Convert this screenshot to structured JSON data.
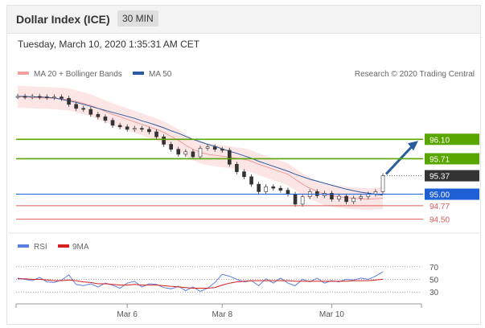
{
  "header": {
    "title": "Dollar Index (ICE)",
    "timeframe": "30 MIN"
  },
  "timestamp": "Tuesday, March 10, 2020 1:35:31 AM CET",
  "legend": {
    "bollinger": "MA 20 + Bollinger Bands",
    "ma50": "MA 50",
    "credit": "Research © 2020 Trading Central"
  },
  "colors": {
    "resistance": "#5aa600",
    "support_blue": "#1f5fd6",
    "support_red": "#e25a5a",
    "current": "#333333",
    "ma50": "#2a5d9f",
    "bollinger": "#f4a0a0",
    "rsi": "#5b7fe0",
    "rsi_ma": "#d62020",
    "arrow": "#2a5d9f"
  },
  "chart_data": [
    {
      "type": "line",
      "series": [
        {
          "name": "MA 20 + Bollinger Bands",
          "y": [
            96.95,
            96.95,
            96.94,
            96.93,
            96.93,
            96.92,
            96.91,
            96.9,
            96.86,
            96.82,
            96.78,
            96.72,
            96.66,
            96.6,
            96.55,
            96.5,
            96.45,
            96.4,
            96.35,
            96.3,
            96.24,
            96.16,
            96.08,
            95.98,
            95.9,
            95.84,
            95.8,
            95.78,
            95.76,
            95.74,
            95.72,
            95.7,
            95.66,
            95.6,
            95.55,
            95.5,
            95.45,
            95.4,
            95.3,
            95.2,
            95.12,
            95.06,
            95.0,
            94.97,
            94.95,
            94.93,
            94.92,
            94.91,
            94.9,
            94.91,
            94.92
          ]
        },
        {
          "name": "MA 50",
          "y": [
            96.96,
            96.96,
            96.95,
            96.95,
            96.94,
            96.93,
            96.9,
            96.87,
            96.84,
            96.8,
            96.76,
            96.72,
            96.68,
            96.64,
            96.6,
            96.56,
            96.52,
            96.47,
            96.43,
            96.38,
            96.33,
            96.27,
            96.22,
            96.16,
            96.1,
            96.05,
            96.0,
            95.96,
            95.91,
            95.86,
            95.82,
            95.77,
            95.72,
            95.66,
            95.61,
            95.56,
            95.51,
            95.46,
            95.4,
            95.35,
            95.3,
            95.26,
            95.22,
            95.18,
            95.14,
            95.1,
            95.07,
            95.04,
            95.02,
            95.0,
            94.98
          ]
        },
        {
          "name": "Price",
          "y": [
            96.96,
            96.95,
            96.96,
            96.95,
            96.94,
            96.95,
            96.92,
            96.8,
            96.72,
            96.7,
            96.6,
            96.55,
            96.48,
            96.38,
            96.35,
            96.3,
            96.32,
            96.3,
            96.25,
            96.15,
            96.0,
            95.9,
            95.8,
            95.85,
            95.75,
            95.92,
            95.95,
            95.9,
            95.88,
            95.6,
            95.45,
            95.35,
            95.2,
            95.05,
            95.15,
            95.12,
            95.08,
            95.0,
            94.8,
            94.95,
            95.05,
            94.97,
            95.02,
            94.9,
            94.96,
            94.85,
            94.92,
            94.95,
            95.0,
            95.05,
            95.37
          ]
        }
      ],
      "levels": [
        {
          "value": 96.1,
          "label": "96.10",
          "kind": "resistance"
        },
        {
          "value": 95.71,
          "label": "95.71",
          "kind": "resistance"
        },
        {
          "value": 95.37,
          "label": "95.37",
          "kind": "current"
        },
        {
          "value": 95.0,
          "label": "95.00",
          "kind": "pivot"
        },
        {
          "value": 94.77,
          "label": "94.77",
          "kind": "support"
        },
        {
          "value": 94.5,
          "label": "94.50",
          "kind": "support"
        }
      ],
      "x_ticks": [
        {
          "label": "Mar 6",
          "i": 15
        },
        {
          "label": "Mar 8",
          "i": 28
        },
        {
          "label": "Mar 10",
          "i": 43
        }
      ],
      "ylim": [
        94.3,
        97.2
      ],
      "bands_width": 0.22
    },
    {
      "type": "line",
      "series": [
        {
          "name": "RSI",
          "values": [
            52,
            50,
            48,
            53,
            46,
            45,
            49,
            57,
            42,
            40,
            43,
            38,
            44,
            41,
            36,
            44,
            47,
            38,
            43,
            42,
            37,
            35,
            39,
            32,
            38,
            31,
            36,
            45,
            58,
            55,
            50,
            46,
            48,
            40,
            51,
            44,
            52,
            44,
            40,
            50,
            46,
            52,
            44,
            48,
            46,
            50,
            49,
            52,
            50,
            55,
            62
          ]
        },
        {
          "name": "9MA",
          "values": [
            51,
            51,
            50,
            50,
            49,
            48,
            48,
            49,
            48,
            46,
            45,
            43,
            43,
            42,
            41,
            41,
            42,
            41,
            41,
            41,
            40,
            39,
            38,
            37,
            36,
            36,
            36,
            37,
            41,
            44,
            46,
            47,
            48,
            48,
            48,
            48,
            48,
            48,
            47,
            47,
            47,
            47,
            47,
            47,
            47,
            47,
            48,
            48,
            48,
            49,
            50
          ]
        }
      ],
      "levels": [
        70,
        50,
        30
      ],
      "ylim": [
        15,
        85
      ]
    }
  ]
}
